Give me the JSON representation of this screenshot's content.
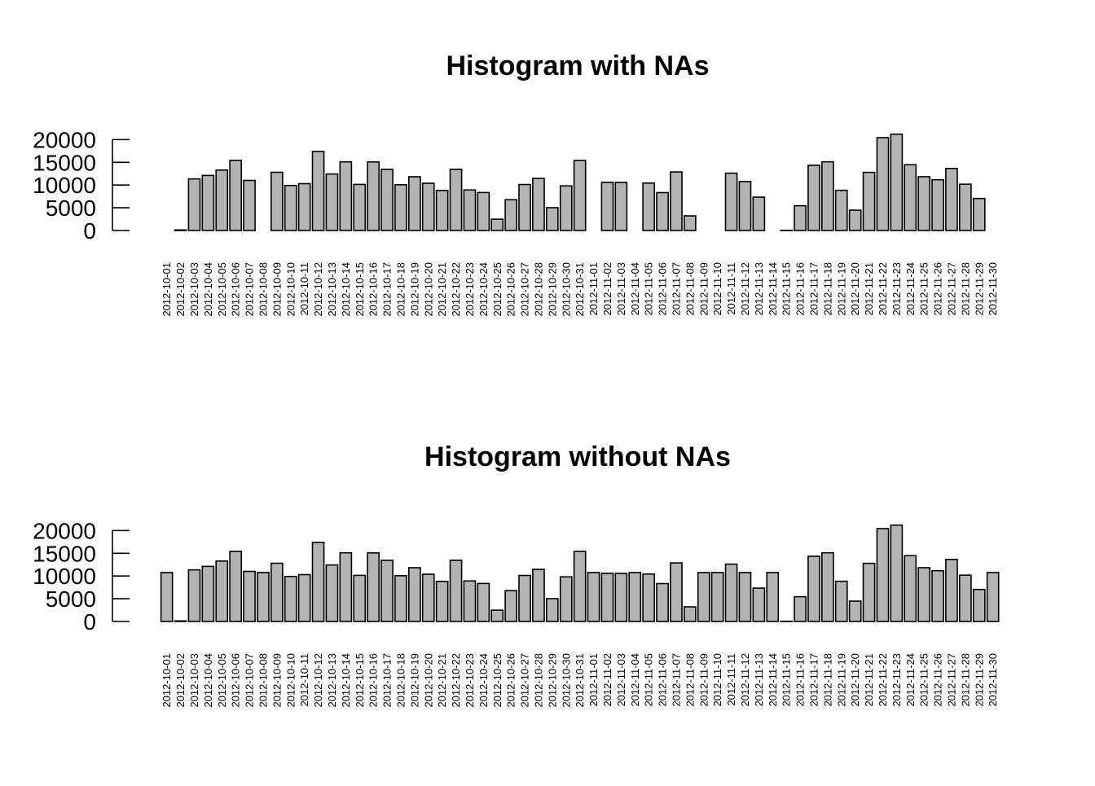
{
  "chart_data": [
    {
      "type": "bar",
      "title": "Histogram with NAs",
      "xlabel": "",
      "ylabel": "",
      "ylim": [
        0,
        21500
      ],
      "yticks": [
        0,
        5000,
        10000,
        15000,
        20000
      ],
      "bar_fill": "#b3b3b3",
      "bar_stroke": "#000000",
      "categories": [
        "2012-10-01",
        "2012-10-02",
        "2012-10-03",
        "2012-10-04",
        "2012-10-05",
        "2012-10-06",
        "2012-10-07",
        "2012-10-08",
        "2012-10-09",
        "2012-10-10",
        "2012-10-11",
        "2012-10-12",
        "2012-10-13",
        "2012-10-14",
        "2012-10-15",
        "2012-10-16",
        "2012-10-17",
        "2012-10-18",
        "2012-10-19",
        "2012-10-20",
        "2012-10-21",
        "2012-10-22",
        "2012-10-23",
        "2012-10-24",
        "2012-10-25",
        "2012-10-26",
        "2012-10-27",
        "2012-10-28",
        "2012-10-29",
        "2012-10-30",
        "2012-10-31",
        "2012-11-01",
        "2012-11-02",
        "2012-11-03",
        "2012-11-04",
        "2012-11-05",
        "2012-11-06",
        "2012-11-07",
        "2012-11-08",
        "2012-11-09",
        "2012-11-10",
        "2012-11-11",
        "2012-11-12",
        "2012-11-13",
        "2012-11-14",
        "2012-11-15",
        "2012-11-16",
        "2012-11-17",
        "2012-11-18",
        "2012-11-19",
        "2012-11-20",
        "2012-11-21",
        "2012-11-22",
        "2012-11-23",
        "2012-11-24",
        "2012-11-25",
        "2012-11-26",
        "2012-11-27",
        "2012-11-28",
        "2012-11-29",
        "2012-11-30"
      ],
      "values": [
        null,
        126,
        11352,
        12116,
        13294,
        15420,
        11015,
        null,
        12811,
        9900,
        10304,
        17382,
        12426,
        15098,
        10139,
        15084,
        13452,
        10056,
        11829,
        10395,
        8821,
        13460,
        8918,
        8355,
        2492,
        6778,
        10119,
        11458,
        5018,
        9819,
        15414,
        null,
        10600,
        10571,
        null,
        10439,
        8334,
        12883,
        3219,
        null,
        null,
        12608,
        10765,
        7336,
        null,
        41,
        5441,
        14339,
        15110,
        8841,
        4472,
        12787,
        20427,
        21194,
        14478,
        11834,
        11162,
        13646,
        10183,
        7047,
        null
      ]
    },
    {
      "type": "bar",
      "title": "Histogram without NAs",
      "xlabel": "",
      "ylabel": "",
      "ylim": [
        0,
        21500
      ],
      "yticks": [
        0,
        5000,
        10000,
        15000,
        20000
      ],
      "bar_fill": "#b3b3b3",
      "bar_stroke": "#000000",
      "categories": [
        "2012-10-01",
        "2012-10-02",
        "2012-10-03",
        "2012-10-04",
        "2012-10-05",
        "2012-10-06",
        "2012-10-07",
        "2012-10-08",
        "2012-10-09",
        "2012-10-10",
        "2012-10-11",
        "2012-10-12",
        "2012-10-13",
        "2012-10-14",
        "2012-10-15",
        "2012-10-16",
        "2012-10-17",
        "2012-10-18",
        "2012-10-19",
        "2012-10-20",
        "2012-10-21",
        "2012-10-22",
        "2012-10-23",
        "2012-10-24",
        "2012-10-25",
        "2012-10-26",
        "2012-10-27",
        "2012-10-28",
        "2012-10-29",
        "2012-10-30",
        "2012-10-31",
        "2012-11-01",
        "2012-11-02",
        "2012-11-03",
        "2012-11-04",
        "2012-11-05",
        "2012-11-06",
        "2012-11-07",
        "2012-11-08",
        "2012-11-09",
        "2012-11-10",
        "2012-11-11",
        "2012-11-12",
        "2012-11-13",
        "2012-11-14",
        "2012-11-15",
        "2012-11-16",
        "2012-11-17",
        "2012-11-18",
        "2012-11-19",
        "2012-11-20",
        "2012-11-21",
        "2012-11-22",
        "2012-11-23",
        "2012-11-24",
        "2012-11-25",
        "2012-11-26",
        "2012-11-27",
        "2012-11-28",
        "2012-11-29",
        "2012-11-30"
      ],
      "values": [
        10766,
        126,
        11352,
        12116,
        13294,
        15420,
        11015,
        10766,
        12811,
        9900,
        10304,
        17382,
        12426,
        15098,
        10139,
        15084,
        13452,
        10056,
        11829,
        10395,
        8821,
        13460,
        8918,
        8355,
        2492,
        6778,
        10119,
        11458,
        5018,
        9819,
        15414,
        10766,
        10600,
        10571,
        10766,
        10439,
        8334,
        12883,
        3219,
        10766,
        10766,
        12608,
        10765,
        7336,
        10766,
        41,
        5441,
        14339,
        15110,
        8841,
        4472,
        12787,
        20427,
        21194,
        14478,
        11834,
        11162,
        13646,
        10183,
        7047,
        10766
      ]
    }
  ]
}
